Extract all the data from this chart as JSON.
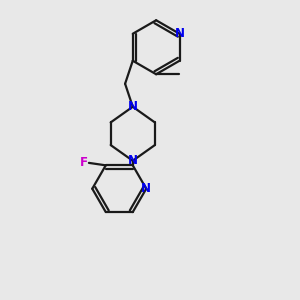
{
  "bg_color": "#e8e8e8",
  "bond_color": "#1a1a1a",
  "N_color": "#0000ee",
  "F_color": "#cc00cc",
  "line_width": 1.6,
  "font_size_atom": 8.5,
  "fig_size": [
    3.0,
    3.0
  ],
  "dpi": 100,
  "xlim": [
    0.1,
    0.9
  ],
  "ylim": [
    0.02,
    0.98
  ]
}
